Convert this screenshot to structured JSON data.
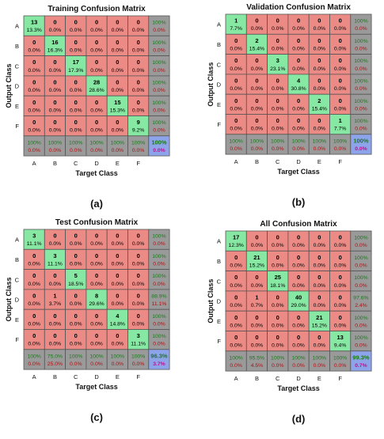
{
  "colors": {
    "diag": "#86e8a2",
    "offdiag": "#ec8b86",
    "summary": "#9a9a9a",
    "total": "#8ea4ea",
    "pct_green": "#1a7a1a",
    "pct_red": "#b01010",
    "total_red": "#c0108a",
    "border": "#555555"
  },
  "chart_data": [
    {
      "type": "heatmap",
      "title": "Training Confusion Matrix",
      "xlabel": "Target Class",
      "ylabel": "Output Class",
      "caption": "(a)",
      "classes": [
        "A",
        "B",
        "C",
        "D",
        "E",
        "F"
      ],
      "counts": [
        [
          13,
          0,
          0,
          0,
          0,
          0
        ],
        [
          0,
          16,
          0,
          0,
          0,
          0
        ],
        [
          0,
          0,
          17,
          0,
          0,
          0
        ],
        [
          0,
          0,
          0,
          28,
          0,
          0
        ],
        [
          0,
          0,
          0,
          0,
          15,
          0
        ],
        [
          0,
          0,
          0,
          0,
          0,
          9
        ]
      ],
      "cell_pct": [
        [
          "13.3%",
          "0.0%",
          "0.0%",
          "0.0%",
          "0.0%",
          "0.0%"
        ],
        [
          "0.0%",
          "16.3%",
          "0.0%",
          "0.0%",
          "0.0%",
          "0.0%"
        ],
        [
          "0.0%",
          "0.0%",
          "17.3%",
          "0.0%",
          "0.0%",
          "0.0%"
        ],
        [
          "0.0%",
          "0.0%",
          "0.0%",
          "28.6%",
          "0.0%",
          "0.0%"
        ],
        [
          "0.0%",
          "0.0%",
          "0.0%",
          "0.0%",
          "15.3%",
          "0.0%"
        ],
        [
          "0.0%",
          "0.0%",
          "0.0%",
          "0.0%",
          "0.0%",
          "9.2%"
        ]
      ],
      "row_summary": [
        [
          "100%",
          "0.0%"
        ],
        [
          "100%",
          "0.0%"
        ],
        [
          "100%",
          "0.0%"
        ],
        [
          "100%",
          "0.0%"
        ],
        [
          "100%",
          "0.0%"
        ],
        [
          "100%",
          "0.0%"
        ]
      ],
      "col_summary": [
        [
          "100%",
          "0.0%"
        ],
        [
          "100%",
          "0.0%"
        ],
        [
          "100%",
          "0.0%"
        ],
        [
          "100%",
          "0.0%"
        ],
        [
          "100%",
          "0.0%"
        ],
        [
          "100%",
          "0.0%"
        ]
      ],
      "total": [
        "100%",
        "0.0%"
      ]
    },
    {
      "type": "heatmap",
      "title": "Validation Confusion Matrix",
      "xlabel": "Target Class",
      "ylabel": "Output Class",
      "caption": "(b)",
      "classes": [
        "A",
        "B",
        "C",
        "D",
        "E",
        "F"
      ],
      "counts": [
        [
          1,
          0,
          0,
          0,
          0,
          0
        ],
        [
          0,
          2,
          0,
          0,
          0,
          0
        ],
        [
          0,
          0,
          3,
          0,
          0,
          0
        ],
        [
          0,
          0,
          0,
          4,
          0,
          0
        ],
        [
          0,
          0,
          0,
          0,
          2,
          0
        ],
        [
          0,
          0,
          0,
          0,
          0,
          1
        ]
      ],
      "cell_pct": [
        [
          "7.7%",
          "0.0%",
          "0.0%",
          "0.0%",
          "0.0%",
          "0.0%"
        ],
        [
          "0.0%",
          "15.4%",
          "0.0%",
          "0.0%",
          "0.0%",
          "0.0%"
        ],
        [
          "0.0%",
          "0.0%",
          "23.1%",
          "0.0%",
          "0.0%",
          "0.0%"
        ],
        [
          "0.0%",
          "0.0%",
          "0.0%",
          "30.8%",
          "0.0%",
          "0.0%"
        ],
        [
          "0.0%",
          "0.0%",
          "0.0%",
          "0.0%",
          "15.4%",
          "0.0%"
        ],
        [
          "0.0%",
          "0.0%",
          "0.0%",
          "0.0%",
          "0.0%",
          "7.7%"
        ]
      ],
      "row_summary": [
        [
          "100%",
          "0.0%"
        ],
        [
          "100%",
          "0.0%"
        ],
        [
          "100%",
          "0.0%"
        ],
        [
          "100%",
          "0.0%"
        ],
        [
          "100%",
          "0.0%"
        ],
        [
          "100%",
          "0.0%"
        ]
      ],
      "col_summary": [
        [
          "100%",
          "0.0%"
        ],
        [
          "100%",
          "0.0%"
        ],
        [
          "100%",
          "0.0%"
        ],
        [
          "100%",
          "0.0%"
        ],
        [
          "100%",
          "0.0%"
        ],
        [
          "100%",
          "0.0%"
        ]
      ],
      "total": [
        "100%",
        "0.0%"
      ]
    },
    {
      "type": "heatmap",
      "title": "Test Confusion Matrix",
      "xlabel": "Target Class",
      "ylabel": "Output Class",
      "caption": "(c)",
      "classes": [
        "A",
        "B",
        "C",
        "D",
        "E",
        "F"
      ],
      "counts": [
        [
          3,
          0,
          0,
          0,
          0,
          0
        ],
        [
          0,
          3,
          0,
          0,
          0,
          0
        ],
        [
          0,
          0,
          5,
          0,
          0,
          0
        ],
        [
          0,
          1,
          0,
          8,
          0,
          0
        ],
        [
          0,
          0,
          0,
          0,
          4,
          0
        ],
        [
          0,
          0,
          0,
          0,
          0,
          3
        ]
      ],
      "cell_pct": [
        [
          "11.1%",
          "0.0%",
          "0.0%",
          "0.0%",
          "0.0%",
          "0.0%"
        ],
        [
          "0.0%",
          "11.1%",
          "0.0%",
          "0.0%",
          "0.0%",
          "0.0%"
        ],
        [
          "0.0%",
          "0.0%",
          "18.5%",
          "0.0%",
          "0.0%",
          "0.0%"
        ],
        [
          "0.0%",
          "3.7%",
          "0.0%",
          "29.6%",
          "0.0%",
          "0.0%"
        ],
        [
          "0.0%",
          "0.0%",
          "0.0%",
          "0.0%",
          "14.8%",
          "0.0%"
        ],
        [
          "0.0%",
          "0.0%",
          "0.0%",
          "0.0%",
          "0.0%",
          "11.1%"
        ]
      ],
      "row_summary": [
        [
          "100%",
          "0.0%"
        ],
        [
          "100%",
          "0.0%"
        ],
        [
          "100%",
          "0.0%"
        ],
        [
          "88.9%",
          "11.1%"
        ],
        [
          "100%",
          "0.0%"
        ],
        [
          "100%",
          "0.0%"
        ]
      ],
      "col_summary": [
        [
          "100%",
          "0.0%"
        ],
        [
          "75.0%",
          "25.0%"
        ],
        [
          "100%",
          "0.0%"
        ],
        [
          "100%",
          "0.0%"
        ],
        [
          "100%",
          "0.0%"
        ],
        [
          "100%",
          "0.0%"
        ]
      ],
      "total": [
        "96.3%",
        "3.7%"
      ]
    },
    {
      "type": "heatmap",
      "title": "All Confusion Matrix",
      "xlabel": "Target Class",
      "ylabel": "Output Class",
      "caption": "(d)",
      "classes": [
        "A",
        "B",
        "C",
        "D",
        "E",
        "F"
      ],
      "counts": [
        [
          17,
          0,
          0,
          0,
          0,
          0
        ],
        [
          0,
          21,
          0,
          0,
          0,
          0
        ],
        [
          0,
          0,
          25,
          0,
          0,
          0
        ],
        [
          0,
          1,
          0,
          40,
          0,
          0
        ],
        [
          0,
          0,
          0,
          0,
          21,
          0
        ],
        [
          0,
          0,
          0,
          0,
          0,
          13
        ]
      ],
      "cell_pct": [
        [
          "12.3%",
          "0.0%",
          "0.0%",
          "0.0%",
          "0.0%",
          "0.0%"
        ],
        [
          "0.0%",
          "15.2%",
          "0.0%",
          "0.0%",
          "0.0%",
          "0.0%"
        ],
        [
          "0.0%",
          "0.0%",
          "18.1%",
          "0.0%",
          "0.0%",
          "0.0%"
        ],
        [
          "0.0%",
          "0.7%",
          "0.0%",
          "29.0%",
          "0.0%",
          "0.0%"
        ],
        [
          "0.0%",
          "0.0%",
          "0.0%",
          "0.0%",
          "15.2%",
          "0.0%"
        ],
        [
          "0.0%",
          "0.0%",
          "0.0%",
          "0.0%",
          "0.0%",
          "9.4%"
        ]
      ],
      "row_summary": [
        [
          "100%",
          "0.0%"
        ],
        [
          "100%",
          "0.0%"
        ],
        [
          "100%",
          "0.0%"
        ],
        [
          "97.6%",
          "2.4%"
        ],
        [
          "100%",
          "0.0%"
        ],
        [
          "100%",
          "0.0%"
        ]
      ],
      "col_summary": [
        [
          "100%",
          "0.0%"
        ],
        [
          "95.5%",
          "4.5%"
        ],
        [
          "100%",
          "0.0%"
        ],
        [
          "100%",
          "0.0%"
        ],
        [
          "100%",
          "0.0%"
        ],
        [
          "100%",
          "0.0%"
        ]
      ],
      "total": [
        "99.3%",
        "0.7%"
      ]
    }
  ]
}
